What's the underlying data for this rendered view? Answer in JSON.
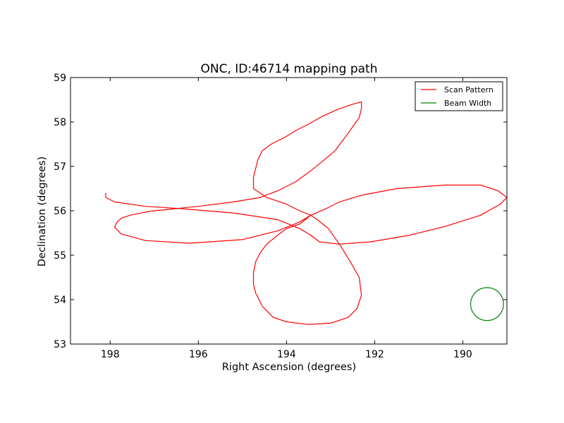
{
  "chart_data": {
    "type": "line",
    "title": "ONC, ID:46714 mapping path",
    "xlabel": "Right Ascension (degrees)",
    "ylabel": "Declination (degrees)",
    "xlim": [
      198.9,
      189.0
    ],
    "ylim": [
      53,
      59
    ],
    "xticks": [
      198,
      196,
      194,
      192,
      190
    ],
    "yticks": [
      53,
      54,
      55,
      56,
      57,
      58,
      59
    ],
    "grid": false,
    "legend_position": "top-right",
    "series": [
      {
        "name": "Scan Pattern",
        "color": "#ff0000",
        "x": [
          193.45,
          193.7,
          194.0,
          194.2,
          194.45,
          194.6,
          194.7,
          194.75,
          194.75,
          194.7,
          194.55,
          194.3,
          194.0,
          193.5,
          193.0,
          192.6,
          192.4,
          192.3,
          192.35,
          192.55,
          192.8,
          193.05,
          193.3,
          193.45,
          193.7,
          194.2,
          195.0,
          196.2,
          197.2,
          197.75,
          197.9,
          197.85,
          197.75,
          197.55,
          197.1,
          196.0,
          195.2,
          194.6,
          194.2,
          193.8,
          193.45,
          193.2,
          192.9,
          192.6,
          192.35,
          192.3,
          192.3,
          192.5,
          192.85,
          193.2,
          193.5,
          193.8,
          194.05,
          194.35,
          194.55,
          194.65,
          194.7,
          194.75,
          194.75,
          194.45,
          194.0,
          193.7,
          193.45,
          193.1,
          192.8,
          192.3,
          191.5,
          190.4,
          189.6,
          189.2,
          189.0,
          189.15,
          189.6,
          190.4,
          191.2,
          192.1,
          192.8,
          193.25,
          193.45,
          193.7,
          194.2,
          195.2,
          196.4,
          197.2,
          197.9,
          198.1,
          198.1
        ],
        "y": [
          55.9,
          55.7,
          55.6,
          55.45,
          55.25,
          55.05,
          54.85,
          54.6,
          54.35,
          54.15,
          53.85,
          53.6,
          53.5,
          53.44,
          53.47,
          53.6,
          53.8,
          54.1,
          54.5,
          54.85,
          55.25,
          55.6,
          55.8,
          55.9,
          55.75,
          55.55,
          55.35,
          55.27,
          55.33,
          55.48,
          55.63,
          55.74,
          55.83,
          55.9,
          55.99,
          56.1,
          56.2,
          56.3,
          56.45,
          56.65,
          56.9,
          57.1,
          57.35,
          57.75,
          58.1,
          58.3,
          58.45,
          58.4,
          58.28,
          58.12,
          57.95,
          57.8,
          57.65,
          57.5,
          57.35,
          57.15,
          56.95,
          56.75,
          56.5,
          56.3,
          56.15,
          56.0,
          55.9,
          56.05,
          56.2,
          56.35,
          56.5,
          56.58,
          56.58,
          56.45,
          56.3,
          56.15,
          55.9,
          55.65,
          55.45,
          55.3,
          55.25,
          55.3,
          55.45,
          55.6,
          55.8,
          55.95,
          56.05,
          56.1,
          56.2,
          56.3,
          56.4
        ]
      },
      {
        "name": "Beam Width",
        "color": "#008000",
        "shape": "circle",
        "center": [
          189.45,
          53.9
        ],
        "radius_y": 0.37
      }
    ]
  }
}
